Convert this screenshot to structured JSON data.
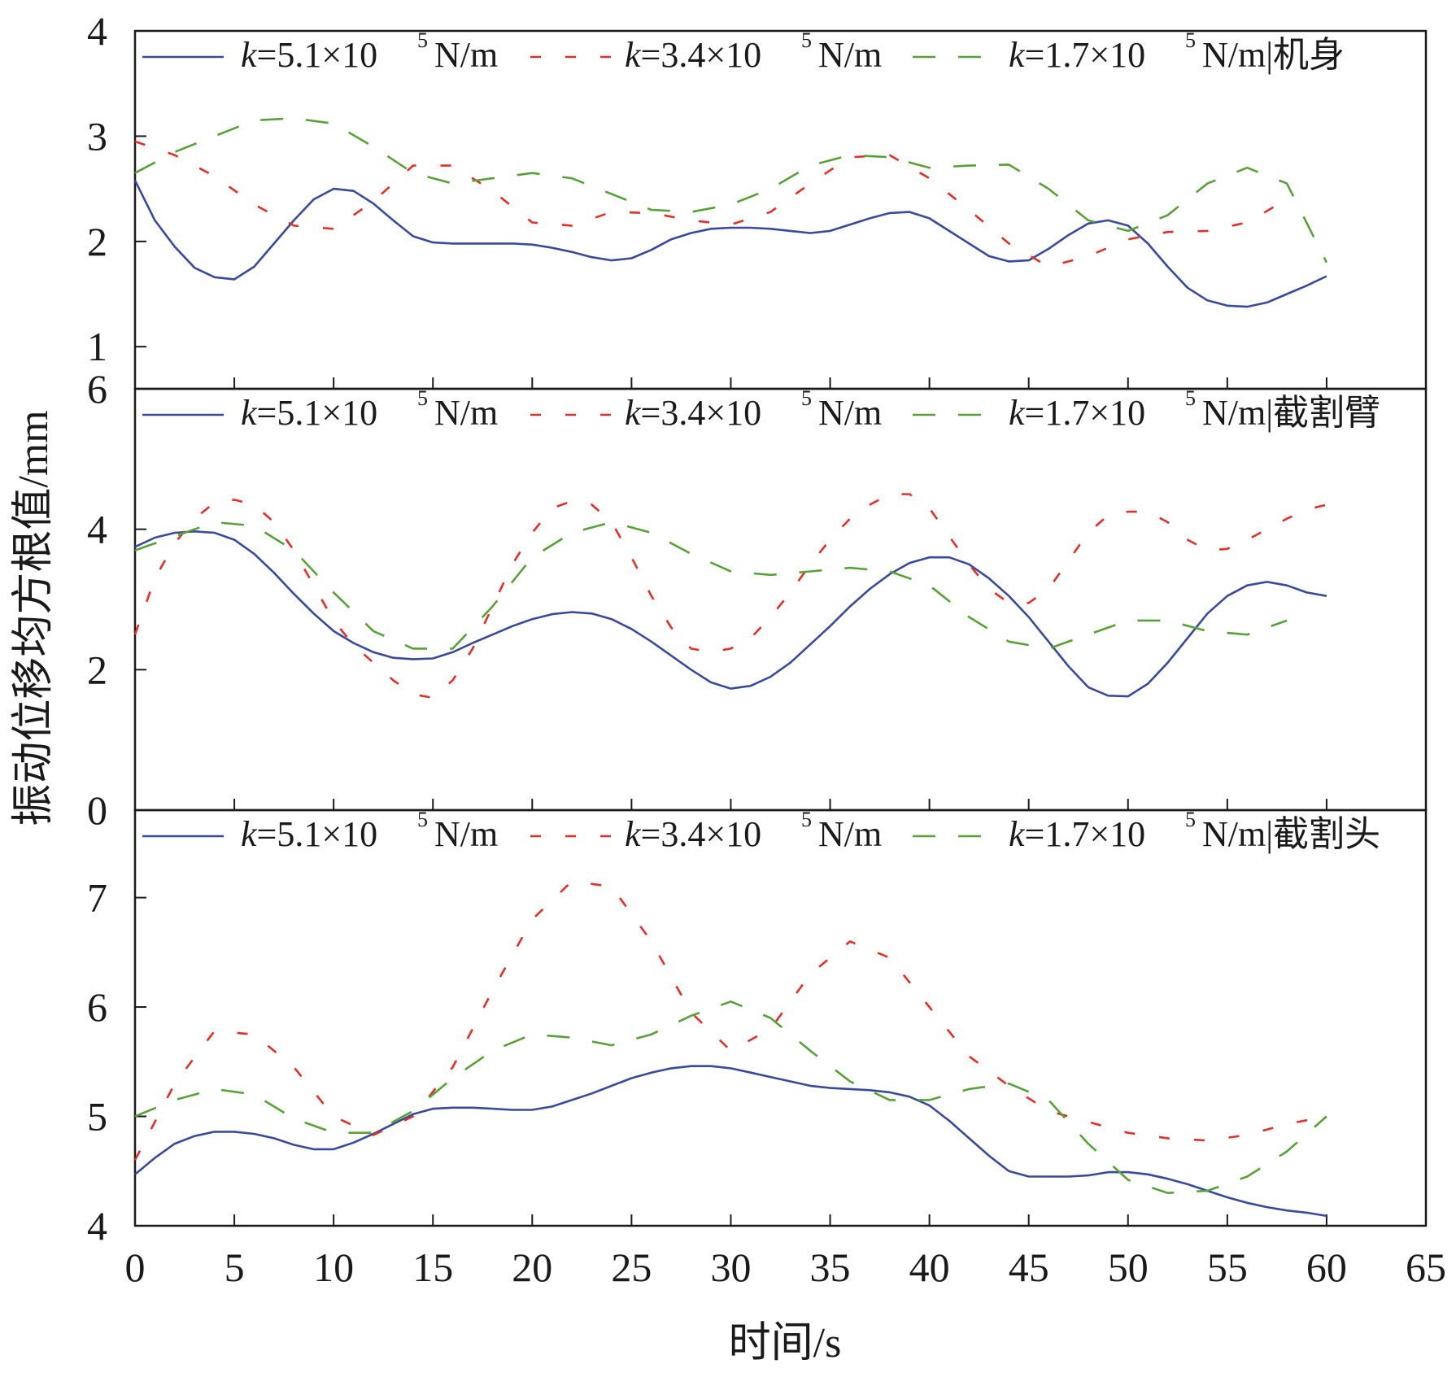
{
  "chart_data": [
    {
      "type": "line",
      "xlabel": "时间/s",
      "ylabel": "振动位移均方根值/mm",
      "xlim": [
        0,
        65
      ],
      "ylim": [
        0.6,
        4
      ],
      "xticks": [
        0,
        5,
        10,
        15,
        20,
        25,
        30,
        35,
        40,
        45,
        50,
        55,
        60,
        65
      ],
      "yticks": [
        1,
        2,
        3,
        4
      ],
      "panel_label": "机身",
      "legend_position": "top",
      "series": [
        {
          "name": "k=5.1×10⁵ N/m",
          "color": "#3a4a9a",
          "style": "solid",
          "x": [
            0,
            1,
            2,
            3,
            4,
            5,
            6,
            7,
            8,
            9,
            10,
            11,
            12,
            13,
            14,
            15,
            16,
            17,
            18,
            19,
            20,
            21,
            22,
            23,
            24,
            25,
            26,
            27,
            28,
            29,
            30,
            31,
            32,
            33,
            34,
            35,
            36,
            37,
            38,
            39,
            40,
            41,
            42,
            43,
            44,
            45,
            46,
            47,
            48,
            49,
            50,
            51,
            52,
            53,
            54,
            55,
            56,
            57,
            58,
            59,
            60
          ],
          "y": [
            2.58,
            2.2,
            1.95,
            1.75,
            1.66,
            1.64,
            1.76,
            1.98,
            2.2,
            2.4,
            2.5,
            2.48,
            2.36,
            2.2,
            2.05,
            1.99,
            1.98,
            1.98,
            1.98,
            1.98,
            1.97,
            1.94,
            1.9,
            1.85,
            1.82,
            1.84,
            1.92,
            2.02,
            2.08,
            2.12,
            2.13,
            2.13,
            2.12,
            2.1,
            2.08,
            2.1,
            2.16,
            2.22,
            2.27,
            2.28,
            2.22,
            2.1,
            1.98,
            1.86,
            1.81,
            1.82,
            1.93,
            2.06,
            2.17,
            2.2,
            2.15,
            1.98,
            1.76,
            1.56,
            1.44,
            1.39,
            1.38,
            1.42,
            1.5,
            1.58,
            1.67
          ]
        },
        {
          "name": "k=3.4×10⁵ N/m",
          "color": "#e0302a",
          "style": "dashed",
          "x": [
            0,
            2,
            4,
            6,
            8,
            10,
            12,
            14,
            16,
            18,
            20,
            22,
            24,
            26,
            28,
            30,
            32,
            34,
            36,
            38,
            40,
            42,
            44,
            46,
            48,
            50,
            52,
            54,
            56,
            58
          ],
          "y": [
            2.95,
            2.82,
            2.62,
            2.35,
            2.15,
            2.12,
            2.38,
            2.72,
            2.72,
            2.48,
            2.18,
            2.15,
            2.28,
            2.27,
            2.2,
            2.16,
            2.28,
            2.55,
            2.8,
            2.82,
            2.6,
            2.3,
            1.98,
            1.76,
            1.86,
            2.02,
            2.09,
            2.1,
            2.18,
            2.4
          ]
        },
        {
          "name": "k=1.7×10⁵ N/m",
          "color": "#5aa03a",
          "style": "dashed-long",
          "x": [
            0,
            2,
            4,
            6,
            8,
            10,
            12,
            14,
            16,
            18,
            20,
            22,
            24,
            26,
            28,
            30,
            32,
            34,
            36,
            38,
            40,
            42,
            44,
            46,
            48,
            50,
            52,
            54,
            56,
            58,
            60
          ],
          "y": [
            2.65,
            2.85,
            3.0,
            3.15,
            3.17,
            3.12,
            2.9,
            2.65,
            2.55,
            2.6,
            2.65,
            2.6,
            2.45,
            2.3,
            2.28,
            2.35,
            2.5,
            2.72,
            2.82,
            2.8,
            2.7,
            2.72,
            2.73,
            2.5,
            2.2,
            2.1,
            2.25,
            2.55,
            2.7,
            2.55,
            1.8
          ]
        }
      ]
    },
    {
      "type": "line",
      "xlim": [
        0,
        65
      ],
      "ylim": [
        0,
        6
      ],
      "xticks": [
        0,
        5,
        10,
        15,
        20,
        25,
        30,
        35,
        40,
        45,
        50,
        55,
        60,
        65
      ],
      "yticks": [
        0,
        2,
        4,
        6
      ],
      "panel_label": "截割臂",
      "legend_position": "top",
      "series": [
        {
          "name": "k=5.1×10⁵ N/m",
          "color": "#3a4a9a",
          "style": "solid",
          "x": [
            0,
            1,
            2,
            3,
            4,
            5,
            6,
            7,
            8,
            9,
            10,
            11,
            12,
            13,
            14,
            15,
            16,
            17,
            18,
            19,
            20,
            21,
            22,
            23,
            24,
            25,
            26,
            27,
            28,
            29,
            30,
            31,
            32,
            33,
            34,
            35,
            36,
            37,
            38,
            39,
            40,
            41,
            42,
            43,
            44,
            45,
            46,
            47,
            48,
            49,
            50,
            51,
            52,
            53,
            54,
            55,
            56,
            57,
            58,
            59,
            60
          ],
          "y": [
            3.75,
            3.88,
            3.95,
            3.97,
            3.95,
            3.85,
            3.65,
            3.38,
            3.08,
            2.8,
            2.55,
            2.38,
            2.25,
            2.17,
            2.15,
            2.16,
            2.25,
            2.38,
            2.5,
            2.62,
            2.72,
            2.79,
            2.82,
            2.8,
            2.72,
            2.58,
            2.4,
            2.2,
            2.0,
            1.82,
            1.73,
            1.77,
            1.9,
            2.1,
            2.36,
            2.62,
            2.9,
            3.15,
            3.36,
            3.52,
            3.6,
            3.6,
            3.5,
            3.3,
            3.05,
            2.75,
            2.4,
            2.05,
            1.75,
            1.63,
            1.62,
            1.8,
            2.1,
            2.45,
            2.8,
            3.05,
            3.2,
            3.25,
            3.2,
            3.1,
            3.05
          ]
        },
        {
          "name": "k=3.4×10⁵ N/m",
          "color": "#e0302a",
          "style": "dashed",
          "x": [
            0,
            1,
            2,
            3,
            4,
            5,
            6,
            7,
            8,
            9,
            10,
            11,
            12,
            13,
            14,
            15,
            16,
            17,
            18,
            19,
            20,
            21,
            22,
            23,
            24,
            25,
            26,
            27,
            28,
            29,
            30,
            31,
            32,
            33,
            34,
            35,
            36,
            37,
            38,
            39,
            40,
            41,
            42,
            43,
            44,
            45,
            46,
            47,
            48,
            49,
            50,
            51,
            52,
            53,
            54,
            55,
            56,
            57,
            58,
            59,
            60
          ],
          "y": [
            2.5,
            3.3,
            3.8,
            4.15,
            4.38,
            4.42,
            4.35,
            4.1,
            3.7,
            3.2,
            2.7,
            2.35,
            2.1,
            1.85,
            1.65,
            1.6,
            1.85,
            2.3,
            2.9,
            3.5,
            3.95,
            4.3,
            4.4,
            4.35,
            4.1,
            3.6,
            3.05,
            2.6,
            2.3,
            2.25,
            2.3,
            2.45,
            2.75,
            3.1,
            3.5,
            3.85,
            4.15,
            4.35,
            4.5,
            4.5,
            4.3,
            3.9,
            3.5,
            3.15,
            2.95,
            2.95,
            3.15,
            3.55,
            3.95,
            4.2,
            4.25,
            4.25,
            4.1,
            3.85,
            3.7,
            3.72,
            3.85,
            4.0,
            4.15,
            4.28,
            4.35
          ]
        },
        {
          "name": "k=1.7×10⁵ N/m",
          "color": "#5aa03a",
          "style": "dashed-long",
          "x": [
            0,
            2,
            4,
            6,
            8,
            10,
            12,
            14,
            16,
            18,
            20,
            22,
            24,
            26,
            28,
            30,
            32,
            34,
            36,
            38,
            40,
            42,
            44,
            46,
            48,
            50,
            52,
            54,
            56,
            58
          ],
          "y": [
            3.7,
            3.9,
            4.1,
            4.05,
            3.7,
            3.1,
            2.55,
            2.3,
            2.3,
            2.9,
            3.6,
            3.95,
            4.1,
            3.95,
            3.65,
            3.4,
            3.35,
            3.4,
            3.45,
            3.4,
            3.2,
            2.75,
            2.4,
            2.3,
            2.5,
            2.7,
            2.7,
            2.55,
            2.5,
            2.7
          ]
        }
      ]
    },
    {
      "type": "line",
      "xlim": [
        0,
        65
      ],
      "ylim": [
        4,
        7.8
      ],
      "xticks": [
        0,
        5,
        10,
        15,
        20,
        25,
        30,
        35,
        40,
        45,
        50,
        55,
        60,
        65
      ],
      "yticks": [
        4,
        5,
        6,
        7
      ],
      "panel_label": "截割头",
      "legend_position": "top",
      "series": [
        {
          "name": "k=5.1×10⁵ N/m",
          "color": "#3a4a9a",
          "style": "solid",
          "x": [
            0,
            1,
            2,
            3,
            4,
            5,
            6,
            7,
            8,
            9,
            10,
            11,
            12,
            13,
            14,
            15,
            16,
            17,
            18,
            19,
            20,
            21,
            22,
            23,
            24,
            25,
            26,
            27,
            28,
            29,
            30,
            31,
            32,
            33,
            34,
            35,
            36,
            37,
            38,
            39,
            40,
            41,
            42,
            43,
            44,
            45,
            46,
            47,
            48,
            49,
            50,
            51,
            52,
            53,
            54,
            55,
            56,
            57,
            58,
            59,
            60
          ],
          "y": [
            4.47,
            4.62,
            4.75,
            4.82,
            4.86,
            4.86,
            4.84,
            4.8,
            4.74,
            4.7,
            4.7,
            4.76,
            4.84,
            4.93,
            5.02,
            5.07,
            5.08,
            5.08,
            5.07,
            5.06,
            5.06,
            5.09,
            5.15,
            5.21,
            5.28,
            5.35,
            5.4,
            5.44,
            5.46,
            5.46,
            5.44,
            5.4,
            5.36,
            5.32,
            5.28,
            5.26,
            5.25,
            5.24,
            5.22,
            5.18,
            5.1,
            4.96,
            4.8,
            4.64,
            4.5,
            4.45,
            4.45,
            4.45,
            4.46,
            4.49,
            4.49,
            4.47,
            4.43,
            4.38,
            4.32,
            4.26,
            4.21,
            4.17,
            4.14,
            4.12,
            4.09
          ]
        },
        {
          "name": "k=3.4×10⁵ N/m",
          "color": "#e0302a",
          "style": "dashed",
          "x": [
            0,
            2,
            4,
            6,
            8,
            10,
            12,
            14,
            16,
            18,
            20,
            22,
            24,
            26,
            28,
            30,
            32,
            34,
            36,
            38,
            40,
            42,
            44,
            46,
            48,
            50,
            52,
            54,
            56,
            58,
            60
          ],
          "y": [
            4.6,
            5.3,
            5.78,
            5.75,
            5.45,
            5.0,
            4.83,
            5.0,
            5.45,
            6.15,
            6.8,
            7.15,
            7.1,
            6.6,
            5.95,
            5.6,
            5.8,
            6.3,
            6.6,
            6.45,
            6.0,
            5.55,
            5.28,
            5.05,
            4.95,
            4.85,
            4.8,
            4.78,
            4.83,
            4.93,
            5.0
          ]
        },
        {
          "name": "k=1.7×10⁵ N/m",
          "color": "#5aa03a",
          "style": "dashed-long",
          "x": [
            0,
            2,
            4,
            6,
            8,
            10,
            12,
            14,
            16,
            18,
            20,
            22,
            24,
            26,
            28,
            30,
            32,
            34,
            36,
            38,
            40,
            42,
            44,
            46,
            48,
            50,
            52,
            54,
            56,
            58,
            60
          ],
          "y": [
            5.0,
            5.15,
            5.25,
            5.2,
            4.98,
            4.85,
            4.85,
            5.05,
            5.35,
            5.6,
            5.75,
            5.72,
            5.65,
            5.75,
            5.92,
            6.05,
            5.9,
            5.6,
            5.32,
            5.15,
            5.15,
            5.25,
            5.3,
            5.15,
            4.75,
            4.42,
            4.3,
            4.32,
            4.45,
            4.68,
            5.0
          ]
        }
      ]
    }
  ]
}
